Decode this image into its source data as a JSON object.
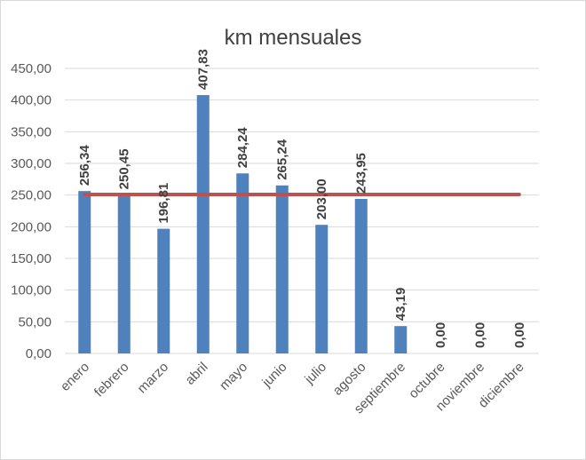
{
  "chart_data": {
    "type": "bar",
    "title": "km mensuales",
    "xlabel": "",
    "ylabel": "",
    "ylim": [
      0,
      450
    ],
    "y_ticks": [
      "0,00",
      "50,00",
      "100,00",
      "150,00",
      "200,00",
      "250,00",
      "300,00",
      "350,00",
      "400,00",
      "450,00"
    ],
    "grid": true,
    "categories": [
      "enero",
      "febrero",
      "marzo",
      "abril",
      "mayo",
      "junio",
      "julio",
      "agosto",
      "septiembre",
      "octubre",
      "noviembre",
      "diciembre"
    ],
    "series": [
      {
        "type": "bar",
        "color": "#4f81bd",
        "values": [
          256.34,
          250.45,
          196.81,
          407.83,
          284.24,
          265.24,
          203.0,
          243.95,
          43.19,
          0.0,
          0.0,
          0.0
        ],
        "labels": [
          "256,34",
          "250,45",
          "196,81",
          "407,83",
          "284,24",
          "265,24",
          "203,00",
          "243,95",
          "43,19",
          "0,00",
          "0,00",
          "0,00"
        ]
      },
      {
        "type": "line",
        "color": "#c0504d",
        "value": 251
      }
    ]
  }
}
